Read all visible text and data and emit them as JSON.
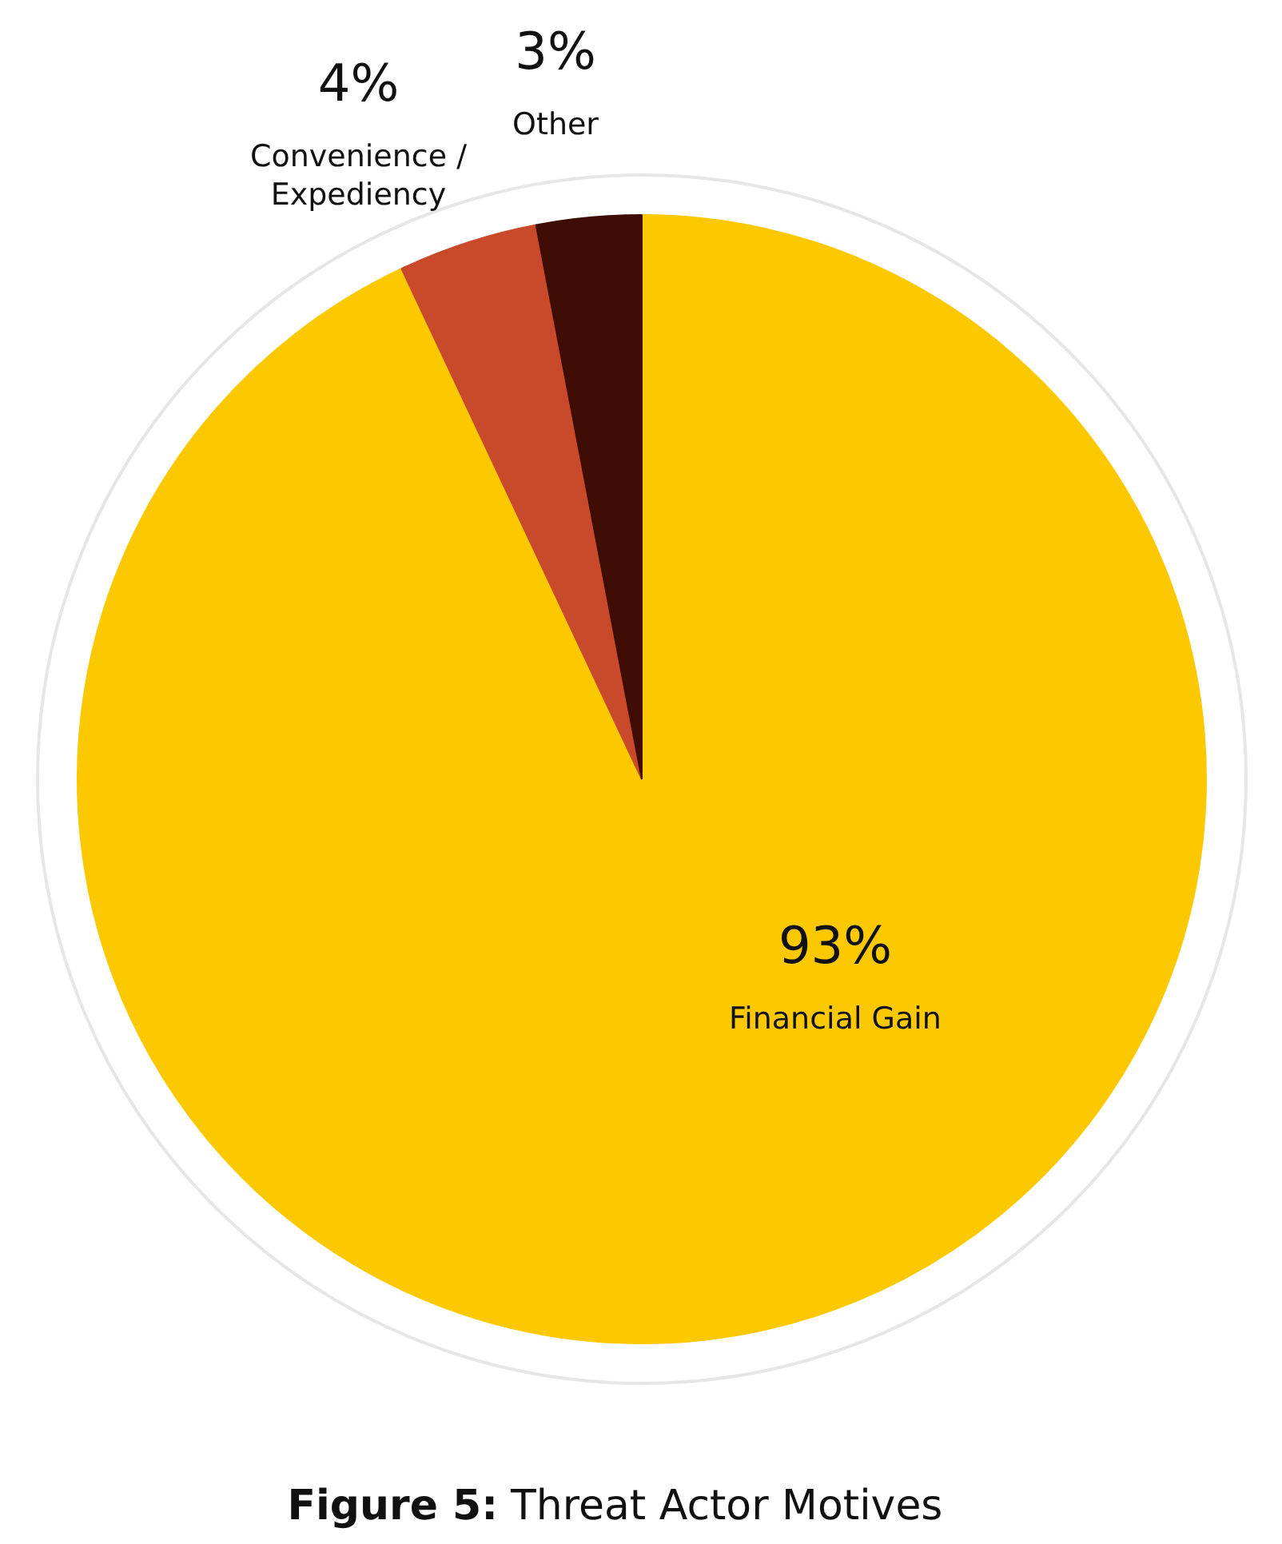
{
  "chart_data": {
    "type": "pie",
    "title": "Figure 5: Threat Actor Motives",
    "categories": [
      "Financial Gain",
      "Convenience / Expediency",
      "Other"
    ],
    "values": [
      93,
      4,
      3
    ],
    "colors": [
      "#fcc800",
      "#c94a2a",
      "#3f0d03"
    ],
    "data_labels": true,
    "value_labels": [
      "93%",
      "4%",
      "3%"
    ]
  }
}
